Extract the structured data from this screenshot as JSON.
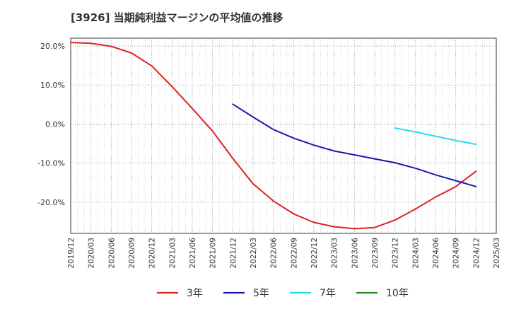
{
  "title": "[3926]  当期純利益マージンの平均値の推移",
  "chart_data": {
    "type": "line",
    "title": "[3926]  当期純利益マージンの平均値の推移",
    "ylim": [
      -28,
      22
    ],
    "y_ticks": [
      20,
      10,
      0,
      -10,
      -20
    ],
    "y_tick_labels": [
      "20.0%",
      "10.0%",
      "0.0%",
      "-10.0%",
      "-20.0%"
    ],
    "x_tick_labels": [
      "2019/12",
      "2020/03",
      "2020/06",
      "2020/09",
      "2020/12",
      "2021/03",
      "2021/06",
      "2021/09",
      "2021/12",
      "2022/03",
      "2022/06",
      "2022/09",
      "2022/12",
      "2023/03",
      "2023/06",
      "2023/09",
      "2023/12",
      "2024/03",
      "2024/06",
      "2024/09",
      "2024/12",
      "2025/03"
    ],
    "grid": true,
    "legend_position": "bottom",
    "series": [
      {
        "name": "3年",
        "color": "#dd2222",
        "points": [
          [
            "2019/12",
            20.9
          ],
          [
            "2020/03",
            20.7
          ],
          [
            "2020/06",
            19.9
          ],
          [
            "2020/09",
            18.2
          ],
          [
            "2020/12",
            14.9
          ],
          [
            "2021/03",
            9.6
          ],
          [
            "2021/06",
            4.0
          ],
          [
            "2021/09",
            -1.8
          ],
          [
            "2021/12",
            -8.8
          ],
          [
            "2022/03",
            -15.3
          ],
          [
            "2022/06",
            -19.7
          ],
          [
            "2022/09",
            -23.0
          ],
          [
            "2022/12",
            -25.2
          ],
          [
            "2023/03",
            -26.3
          ],
          [
            "2023/06",
            -26.8
          ],
          [
            "2023/09",
            -26.5
          ],
          [
            "2023/12",
            -24.6
          ],
          [
            "2024/03",
            -21.8
          ],
          [
            "2024/06",
            -18.7
          ],
          [
            "2024/09",
            -16.0
          ],
          [
            "2024/12",
            -12.1
          ]
        ]
      },
      {
        "name": "5年",
        "color": "#1a1aaa",
        "points": [
          [
            "2021/12",
            5.1
          ],
          [
            "2022/03",
            1.8
          ],
          [
            "2022/06",
            -1.4
          ],
          [
            "2022/09",
            -3.6
          ],
          [
            "2022/12",
            -5.4
          ],
          [
            "2023/03",
            -6.9
          ],
          [
            "2023/06",
            -7.9
          ],
          [
            "2023/09",
            -8.9
          ],
          [
            "2023/12",
            -9.9
          ],
          [
            "2024/03",
            -11.3
          ],
          [
            "2024/06",
            -13.0
          ],
          [
            "2024/09",
            -14.5
          ],
          [
            "2024/12",
            -16.0
          ]
        ]
      },
      {
        "name": "7年",
        "color": "#22ddee",
        "points": [
          [
            "2023/12",
            -1.0
          ],
          [
            "2024/03",
            -2.0
          ],
          [
            "2024/06",
            -3.1
          ],
          [
            "2024/09",
            -4.2
          ],
          [
            "2024/12",
            -5.2
          ]
        ]
      },
      {
        "name": "10年",
        "color": "#228822",
        "points": []
      }
    ]
  }
}
